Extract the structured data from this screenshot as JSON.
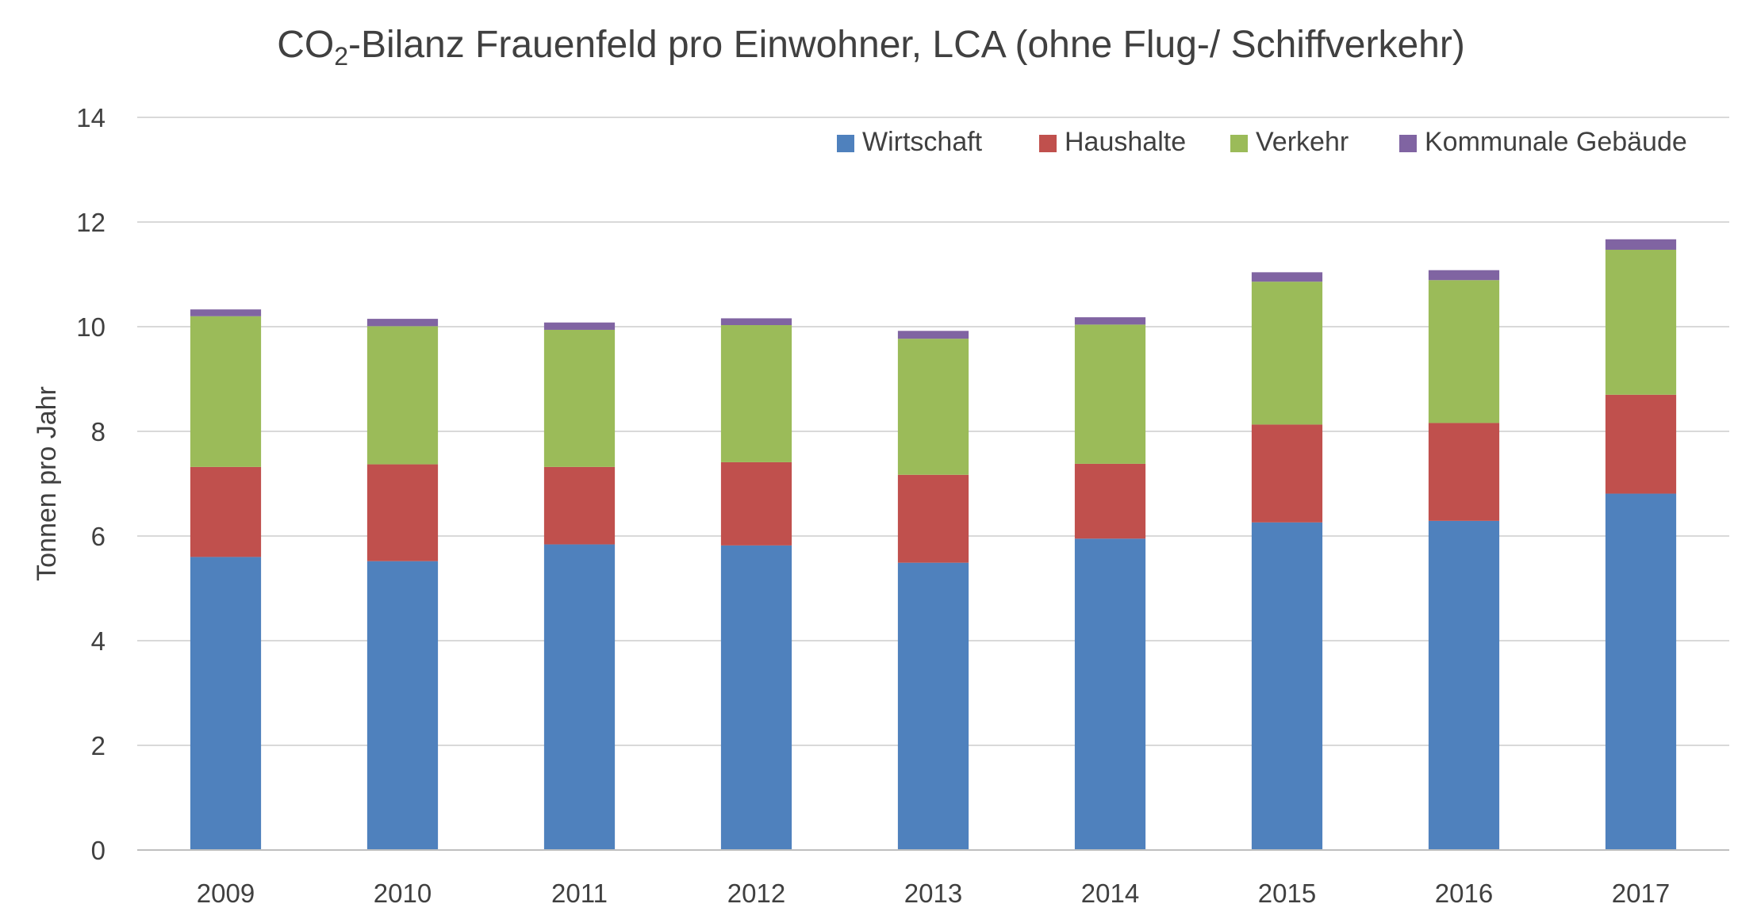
{
  "chart_data": {
    "type": "bar",
    "stacked": true,
    "title_main": "CO",
    "title_sub": "2",
    "title_rest": "-Bilanz Frauenfeld pro Einwohner, LCA (ohne Flug-/ Schiffverkehr)",
    "xlabel": "",
    "ylabel": "Tonnen pro Jahr",
    "ylim": [
      0,
      14
    ],
    "yticks": [
      0,
      2,
      4,
      6,
      8,
      10,
      12,
      14
    ],
    "grid": true,
    "legend_position": "top-right",
    "categories": [
      "2009",
      "2010",
      "2011",
      "2012",
      "2013",
      "2014",
      "2015",
      "2016",
      "2017"
    ],
    "series": [
      {
        "name": "Wirtschaft",
        "color": "#4f81bd",
        "values": [
          5.6,
          5.52,
          5.84,
          5.82,
          5.49,
          5.95,
          6.26,
          6.29,
          6.81
        ]
      },
      {
        "name": "Haushalte",
        "color": "#c0504d",
        "values": [
          1.72,
          1.85,
          1.48,
          1.59,
          1.68,
          1.43,
          1.87,
          1.87,
          1.89
        ]
      },
      {
        "name": "Verkehr",
        "color": "#9bbb59",
        "values": [
          2.88,
          2.64,
          2.62,
          2.62,
          2.6,
          2.66,
          2.73,
          2.73,
          2.77
        ]
      },
      {
        "name": "Kommunale Gebäude",
        "color": "#8064a2",
        "values": [
          0.13,
          0.14,
          0.14,
          0.13,
          0.15,
          0.14,
          0.18,
          0.19,
          0.2
        ]
      }
    ]
  }
}
